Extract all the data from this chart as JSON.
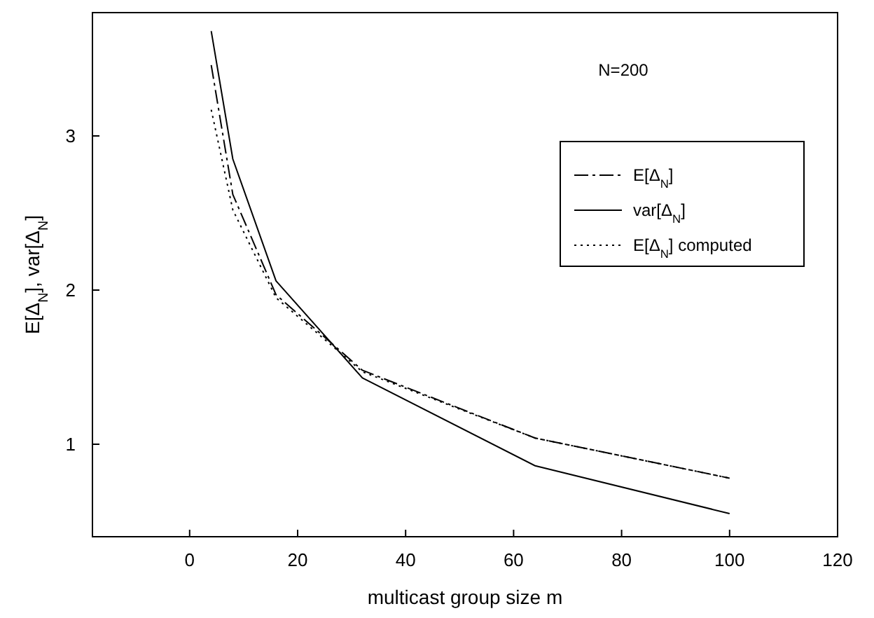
{
  "chart_data": {
    "type": "line",
    "xlabel": "multicast group size m",
    "ylabel": "E[Δ$_{N}$], var[Δ$_{N}$]",
    "annotations": [
      "N=200"
    ],
    "x": [
      4,
      8,
      16,
      32,
      64,
      100
    ],
    "xlim": [
      -18,
      120
    ],
    "xticks": [
      0,
      20,
      40,
      60,
      80,
      100,
      120
    ],
    "ylim": [
      0.4,
      3.8
    ],
    "yticks": [
      1,
      2,
      3
    ],
    "grid": false,
    "legend": "top right",
    "series": [
      {
        "name": "E[Δ$_{N}$]",
        "color": "#000000",
        "line_style": "dashed",
        "values": [
          3.46,
          2.62,
          1.97,
          1.48,
          1.04,
          0.78
        ]
      },
      {
        "name": "var[Δ$_{N}$]",
        "color": "#000000",
        "line_style": "solid",
        "values": [
          3.68,
          2.85,
          2.06,
          1.43,
          0.86,
          0.55
        ]
      },
      {
        "name": "E[Δ$_{N}$] computed",
        "color": "#000000",
        "line_style": "dotted",
        "values": [
          3.17,
          2.52,
          1.95,
          1.47,
          1.04,
          0.78
        ]
      }
    ]
  }
}
